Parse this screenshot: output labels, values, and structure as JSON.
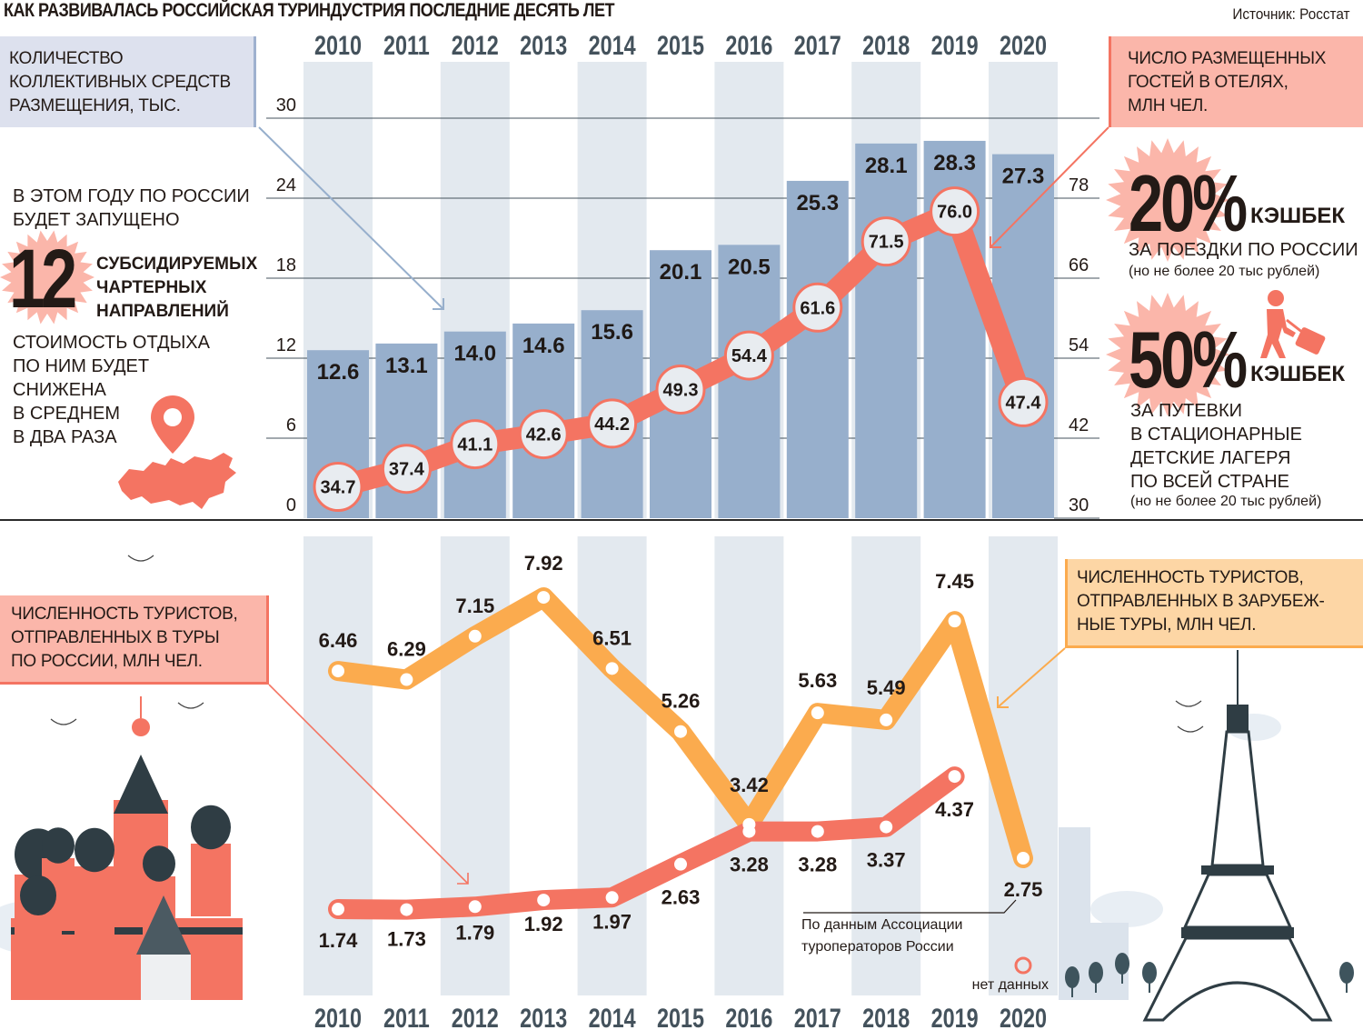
{
  "header": {
    "title": "КАК РАЗВИВАЛАСЬ РОССИЙСКАЯ ТУРИНДУСТРИЯ ПОСЛЕДНИЕ ДЕСЯТЬ ЛЕТ",
    "source": "Источник: Росстат"
  },
  "colors": {
    "bar": "#97afcc",
    "stripe": "#e3e9ef",
    "hotel_line": "#f47462",
    "domestic_line": "#f47462",
    "outbound_line": "#fbab4e",
    "year_text": "#44525c"
  },
  "chart_data": [
    {
      "type": "bar",
      "title": "КОЛИЧЕСТВО КОЛЛЕКТИВНЫХ СРЕДСТВ РАЗМЕЩЕНИЯ, ТЫС.",
      "categories": [
        "2010",
        "2011",
        "2012",
        "2013",
        "2014",
        "2015",
        "2016",
        "2017",
        "2018",
        "2019",
        "2020"
      ],
      "values": [
        12.6,
        13.1,
        14.0,
        14.6,
        15.6,
        20.1,
        20.5,
        25.3,
        28.1,
        28.3,
        27.3
      ],
      "value_labels": [
        "12.6",
        "13.1",
        "14.0",
        "14.6",
        "15.6",
        "20.1",
        "20.5",
        "25.3",
        "28.1",
        "28.3",
        "27.3"
      ],
      "axis": "left",
      "ylim": [
        0,
        30
      ],
      "yticks": [
        0,
        6,
        12,
        18,
        24,
        30
      ],
      "grid": true
    },
    {
      "type": "line",
      "title": "ЧИСЛО РАЗМЕЩЕННЫХ ГОСТЕЙ В ОТЕЛЯХ, МЛН ЧЕЛ.",
      "categories": [
        "2010",
        "2011",
        "2012",
        "2013",
        "2014",
        "2015",
        "2016",
        "2017",
        "2018",
        "2019",
        "2020"
      ],
      "values": [
        34.7,
        37.4,
        41.1,
        42.6,
        44.2,
        49.3,
        54.4,
        61.6,
        71.5,
        76.0,
        47.4
      ],
      "value_labels": [
        "34.7",
        "37.4",
        "41.1",
        "42.6",
        "44.2",
        "49.3",
        "54.4",
        "61.6",
        "71.5",
        "76.0",
        "47.4"
      ],
      "axis": "right",
      "ylim": [
        30,
        90
      ],
      "yticks": [
        30,
        42,
        54,
        66,
        78
      ]
    },
    {
      "type": "line",
      "title": "ЧИСЛЕННОСТЬ ТУРИСТОВ, ОТПРАВЛЕННЫХ В ЗАРУБЕЖНЫЕ ТУРЫ, МЛН ЧЕЛ.",
      "categories": [
        "2010",
        "2011",
        "2012",
        "2013",
        "2014",
        "2015",
        "2016",
        "2017",
        "2018",
        "2019",
        "2020"
      ],
      "values": [
        6.46,
        6.29,
        7.15,
        7.92,
        6.51,
        5.26,
        3.42,
        5.63,
        5.49,
        7.45,
        2.75
      ],
      "value_labels": [
        "6.46",
        "6.29",
        "7.15",
        "7.92",
        "6.51",
        "5.26",
        "3.42",
        "5.63",
        "5.49",
        "7.45",
        "2.75"
      ]
    },
    {
      "type": "line",
      "title": "ЧИСЛЕННОСТЬ ТУРИСТОВ, ОТПРАВЛЕННЫХ В ТУРЫ ПО РОССИИ, МЛН ЧЕЛ.",
      "categories": [
        "2010",
        "2011",
        "2012",
        "2013",
        "2014",
        "2015",
        "2016",
        "2017",
        "2018",
        "2019",
        "2020"
      ],
      "values": [
        1.74,
        1.73,
        1.79,
        1.92,
        1.97,
        2.63,
        3.28,
        3.28,
        3.37,
        4.37,
        null
      ],
      "value_labels": [
        "1.74",
        "1.73",
        "1.79",
        "1.92",
        "1.97",
        "2.63",
        "3.28",
        "3.28",
        "3.37",
        "4.37",
        ""
      ],
      "missing_note": "нет данных"
    }
  ],
  "years": [
    "2010",
    "2011",
    "2012",
    "2013",
    "2014",
    "2015",
    "2016",
    "2017",
    "2018",
    "2019",
    "2020"
  ],
  "labels": {
    "bars_box": "КОЛИЧЕСТВО КОЛЛЕКТИВНЫХ СРЕДСТВ РАЗМЕЩЕНИЯ, ТЫС.",
    "bars_box_lines": [
      "КОЛИЧЕСТВО",
      "КОЛЛЕКТИВНЫХ СРЕДСТВ",
      "РАЗМЕЩЕНИЯ, ТЫС."
    ],
    "hotel_box_lines": [
      "ЧИСЛО РАЗМЕЩЕННЫХ",
      "ГОСТЕЙ В ОТЕЛЯХ,",
      "МЛН ЧЕЛ."
    ],
    "domestic_box_lines": [
      "ЧИСЛЕННОСТЬ ТУРИСТОВ,",
      "ОТПРАВЛЕННЫХ В ТУРЫ",
      "ПО РОССИИ, МЛН ЧЕЛ."
    ],
    "outbound_box_lines": [
      "ЧИСЛЕННОСТЬ ТУРИСТОВ,",
      "ОТПРАВЛЕННЫХ В ЗАРУБЕЖ-",
      "НЫЕ ТУРЫ, МЛН ЧЕЛ."
    ],
    "ato_note_lines": [
      "По данным Ассоциации",
      "туроператоров России"
    ],
    "no_data": "нет данных"
  },
  "left_panel": {
    "intro_lines": [
      "В ЭТОМ ГОДУ ПО РОССИИ",
      "БУДЕТ ЗАПУЩЕНО"
    ],
    "big_number": "12",
    "charter_lines": [
      "СУБСИДИРУЕМЫХ",
      "ЧАРТЕРНЫХ",
      "НАПРАВЛЕНИЙ"
    ],
    "cost_lines": [
      "СТОИМОСТЬ ОТДЫХА",
      "ПО НИМ БУДЕТ",
      "СНИЖЕНА",
      "В СРЕДНЕМ",
      "В ДВА РАЗА"
    ],
    "icon": "map-pin-russia-icon"
  },
  "right_panel": {
    "cashback1": {
      "percent": "20%",
      "word": "КЭШБЕК",
      "desc_lines": [
        "ЗА ПОЕЗДКИ ПО РОССИИ"
      ],
      "limit": "(но не более 20 тыс рублей)"
    },
    "cashback2": {
      "percent": "50%",
      "word": "КЭШБЕК",
      "desc_lines": [
        "ЗА ПУТЕВКИ",
        "В СТАЦИОНАРНЫЕ",
        "ДЕТСКИЕ ЛАГЕРЯ",
        "ПО ВСЕЙ СТРАНЕ"
      ],
      "limit": "(но не более 20 тыс рублей)",
      "icon": "traveler-with-suitcase-icon"
    }
  },
  "illustrations": {
    "left": "st-basils-cathedral-illustration",
    "right": "eiffel-tower-illustration"
  }
}
